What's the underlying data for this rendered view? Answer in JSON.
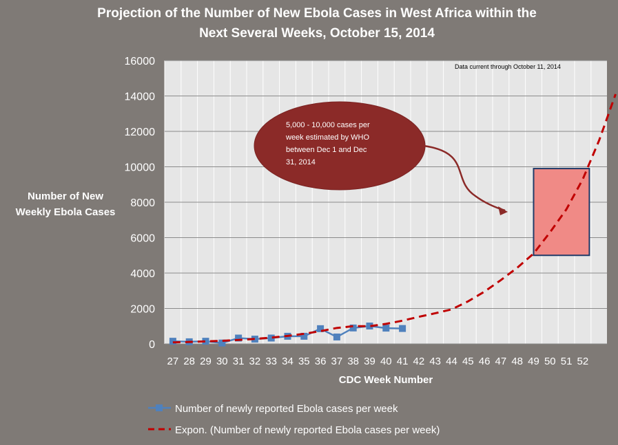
{
  "chart_data": {
    "type": "line",
    "title": [
      "Projection of the Number of New Ebola Cases in West Africa within the",
      "Next Several Weeks,  October 15, 2014"
    ],
    "ylabel": [
      "Number of New",
      "Weekly Ebola Cases"
    ],
    "xlabel": "CDC Week Number",
    "ylim": [
      0,
      16000
    ],
    "yticks": [
      0,
      2000,
      4000,
      6000,
      8000,
      10000,
      12000,
      14000,
      16000
    ],
    "categories": [
      "27",
      "28",
      "29",
      "30",
      "31",
      "32",
      "33",
      "34",
      "35",
      "36",
      "37",
      "38",
      "39",
      "40",
      "41",
      "42",
      "43",
      "44",
      "45",
      "46",
      "47",
      "48",
      "49",
      "50",
      "51",
      "52"
    ],
    "grid": true,
    "series": [
      {
        "name": "Number of newly reported Ebola cases per week",
        "color": "#4f81bd",
        "x": [
          27,
          28,
          29,
          30,
          31,
          32,
          33,
          34,
          35,
          36,
          37,
          38,
          39,
          40,
          41
        ],
        "values": [
          150,
          120,
          150,
          50,
          330,
          270,
          330,
          430,
          430,
          860,
          390,
          900,
          1010,
          890,
          870
        ]
      },
      {
        "name": "Expon. (Number of newly reported Ebola cases per week)",
        "color": "#c00000",
        "style": "dashed",
        "x": [
          27,
          28,
          29,
          30,
          31,
          32,
          33,
          34,
          35,
          36,
          37,
          38,
          39,
          40,
          41,
          42,
          43,
          44,
          45,
          46,
          47,
          48,
          49,
          50,
          51,
          52,
          53,
          54
        ],
        "values": [
          85,
          110,
          140,
          175,
          225,
          280,
          355,
          450,
          570,
          720,
          900,
          1000,
          1000,
          1130,
          1310,
          1530,
          1730,
          1950,
          2400,
          2950,
          3600,
          4300,
          5100,
          6300,
          7600,
          9300,
          11500,
          14100
        ]
      }
    ],
    "annotations": {
      "note": "Data current through  October 11, 2014",
      "callout": [
        "5,000  - 10,000 cases per",
        "week estimated by WHO",
        "between  Dec 1 and Dec",
        "31, 2014"
      ],
      "estimate_range": {
        "x_from": 49,
        "x_to": 52.4,
        "y_from": 5000,
        "y_to": 9900
      }
    },
    "legend_position": "bottom"
  },
  "colors": {
    "background": "#7f7a76",
    "plot_area": "#e6e6e6",
    "callout_fill": "#8b2a28",
    "range_fill": "#f08a86",
    "range_border": "#1f3a68"
  }
}
